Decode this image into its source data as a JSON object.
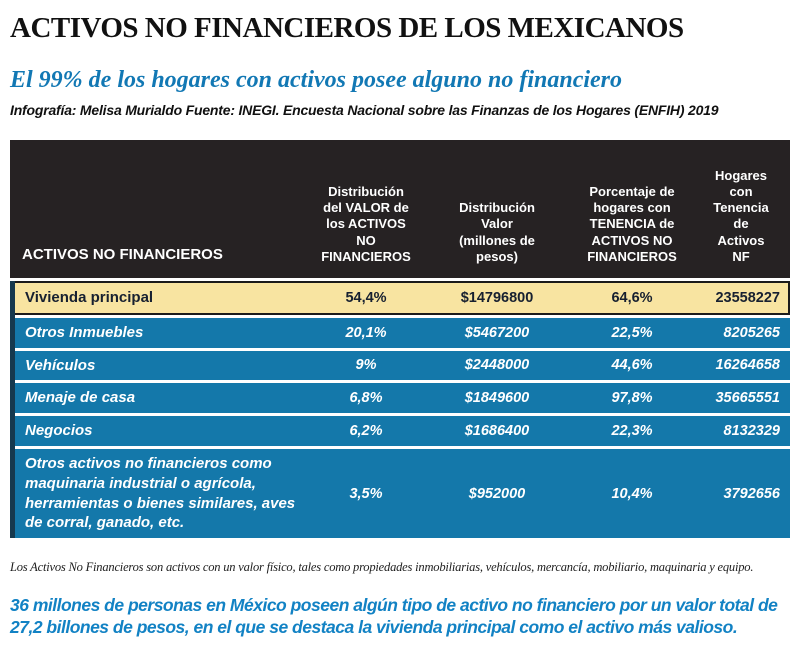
{
  "page": {
    "title": "ACTIVOS NO FINANCIEROS DE LOS MEXICANOS",
    "subtitle": "El 99% de los hogares con activos posee alguno no financiero",
    "credit": "Infografía: Melisa Murialdo Fuente: INEGI. Encuesta Nacional sobre las Finanzas de los Hogares (ENFIH) 2019",
    "footnote": "Los Activos No Financieros son activos con un valor físico, tales como propiedades inmobiliarias, vehículos, mercancía, mobiliario, maquinaria y equipo.",
    "summary_note": "36 millones de personas en México poseen algún tipo de activo no financiero por un valor total de 27,2 billones de pesos, en el que se destaca la vivienda principal como el activo más valioso."
  },
  "colors": {
    "header_dark": "#262223",
    "row_blue": "#1478aa",
    "highlight_yellow": "#f8e4a1",
    "subtitle_blue": "#1278b4",
    "note_blue": "#1282c4"
  },
  "table": {
    "columns": [
      "ACTIVOS NO FINANCIEROS",
      "Distribución del VALOR de los ACTIVOS NO FINANCIEROS",
      "Distribución Valor (millones de pesos)",
      "Porcentaje de hogares con TENENCIA de ACTIVOS NO FINANCIEROS",
      "Hogares con Tenencia de Activos NF"
    ],
    "rows": [
      {
        "label": "Vivienda principal",
        "valor_pct": "54,4%",
        "valor": "$14796800",
        "tenencia_pct": "64,6%",
        "hogares": "23558227",
        "highlight": true
      },
      {
        "label": "Otros Inmuebles",
        "valor_pct": "20,1%",
        "valor": "$5467200",
        "tenencia_pct": "22,5%",
        "hogares": "8205265",
        "highlight": false
      },
      {
        "label": "Vehículos",
        "valor_pct": "9%",
        "valor": "$2448000",
        "tenencia_pct": "44,6%",
        "hogares": "16264658",
        "highlight": false
      },
      {
        "label": "Menaje de casa",
        "valor_pct": "6,8%",
        "valor": "$1849600",
        "tenencia_pct": "97,8%",
        "hogares": "35665551",
        "highlight": false
      },
      {
        "label": "Negocios",
        "valor_pct": "6,2%",
        "valor": "$1686400",
        "tenencia_pct": "22,3%",
        "hogares": "8132329",
        "highlight": false
      },
      {
        "label": "Otros activos no financieros como maquinaria industrial o agrícola, herramientas o bienes similares, aves de corral, ganado, etc.",
        "valor_pct": "3,5%",
        "valor": "$952000",
        "tenencia_pct": "10,4%",
        "hogares": "3792656",
        "highlight": false
      }
    ]
  },
  "chart_data": {
    "type": "table",
    "title": "ACTIVOS NO FINANCIEROS DE LOS MEXICANOS",
    "categories": [
      "Vivienda principal",
      "Otros Inmuebles",
      "Vehículos",
      "Menaje de casa",
      "Negocios",
      "Otros activos no financieros como maquinaria industrial o agrícola, herramientas o bienes similares, aves de corral, ganado, etc."
    ],
    "series": [
      {
        "name": "Distribución del VALOR de los ACTIVOS NO FINANCIEROS (%)",
        "values": [
          54.4,
          20.1,
          9,
          6.8,
          6.2,
          3.5
        ]
      },
      {
        "name": "Distribución Valor (millones de pesos)",
        "values": [
          14796800,
          5467200,
          2448000,
          1849600,
          1686400,
          952000
        ]
      },
      {
        "name": "Porcentaje de hogares con TENENCIA de ACTIVOS NO FINANCIEROS (%)",
        "values": [
          64.6,
          22.5,
          44.6,
          97.8,
          22.3,
          10.4
        ]
      },
      {
        "name": "Hogares con Tenencia de Activos NF",
        "values": [
          23558227,
          8205265,
          16264658,
          35665551,
          8132329,
          3792656
        ]
      }
    ],
    "legend_position": "none",
    "grid": false
  }
}
